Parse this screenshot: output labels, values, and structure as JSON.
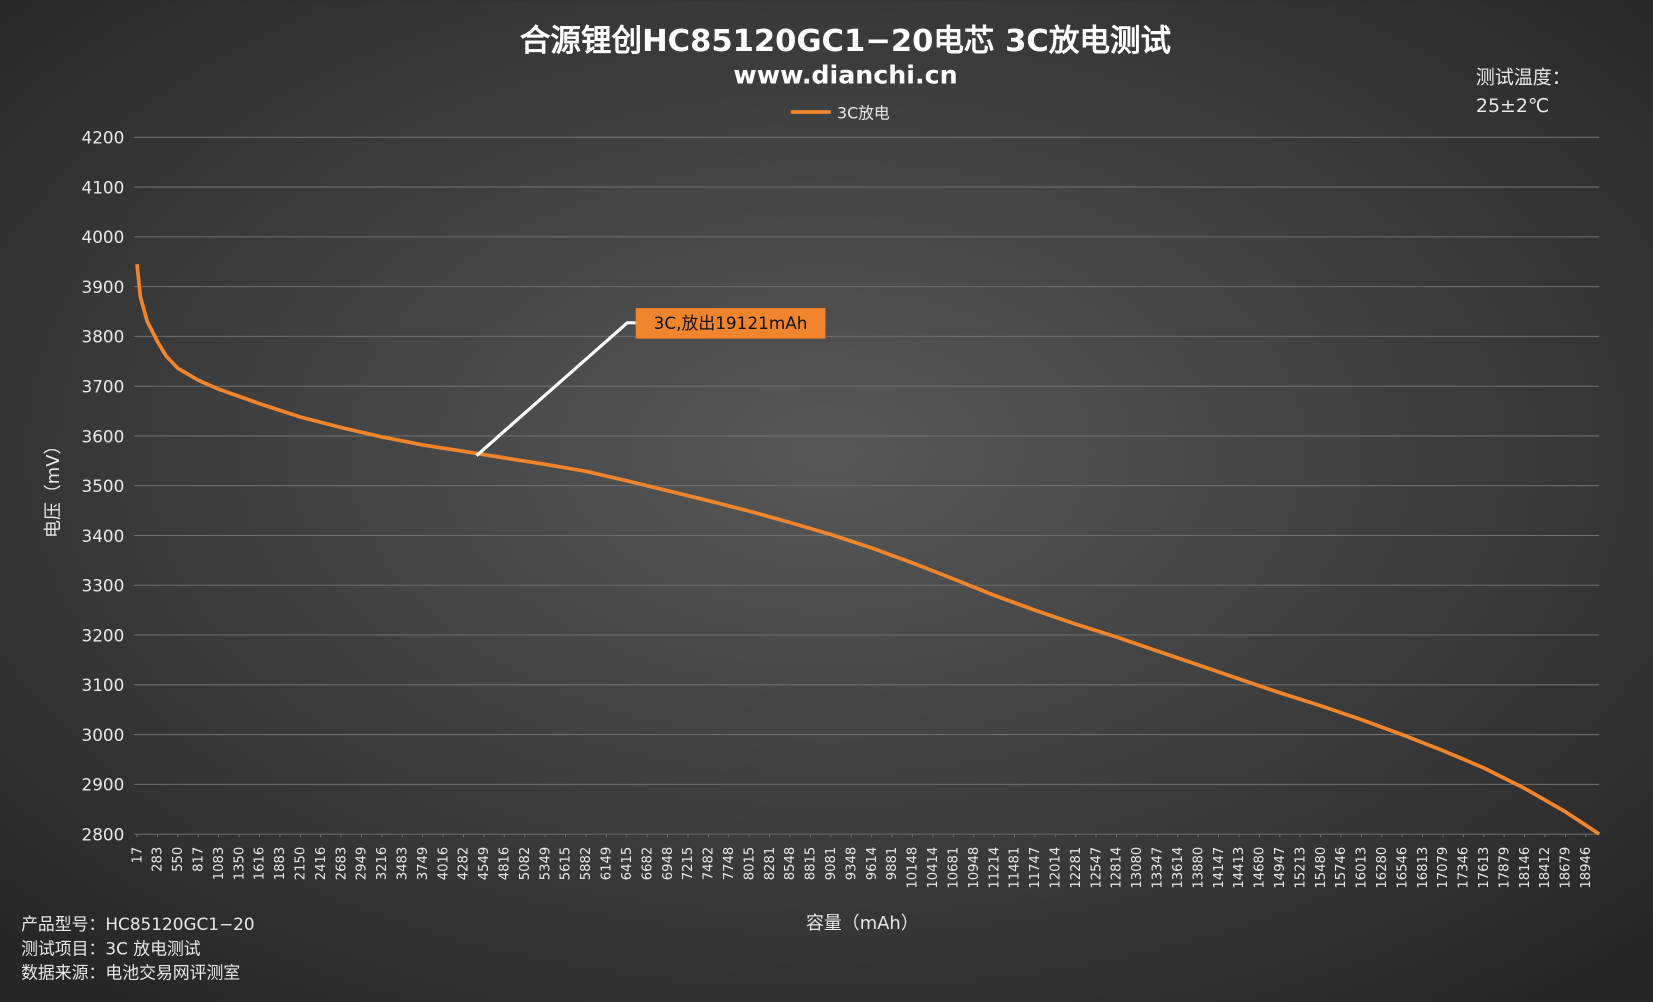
{
  "chart_data": {
    "type": "line",
    "title": "合源锂创HC85120GC1−20电芯 3C放电测试",
    "subtitle": "www.dianchi.cn",
    "x_label": "容量（mAh）",
    "y_label": "电压（mV）",
    "temperature_label": "测试温度：",
    "temperature_value": "25±2℃",
    "annotation": "3C,放出19121mAh",
    "notes": [
      "产品型号：HC85120GC1−20",
      "测试项目：3C 放电测试",
      "数据来源：电池交易网评测室"
    ],
    "grid": true,
    "legend": "top",
    "x": [
      17,
      60,
      150,
      283,
      400,
      550,
      817,
      1083,
      1616,
      2150,
      2683,
      3216,
      3749,
      4282,
      4816,
      5349,
      5882,
      6415,
      6948,
      7482,
      8015,
      8548,
      9081,
      9614,
      10148,
      10681,
      11214,
      11747,
      12281,
      12814,
      13347,
      13880,
      14413,
      14947,
      15480,
      16013,
      16546,
      17079,
      17613,
      18146,
      18679,
      18946,
      19121
    ],
    "series": [
      {
        "name": "3C放电",
        "color": "#f0852d",
        "values": [
          3945,
          3880,
          3830,
          3790,
          3760,
          3736,
          3712,
          3694,
          3665,
          3638,
          3617,
          3598,
          3582,
          3569,
          3556,
          3543,
          3529,
          3510,
          3490,
          3470,
          3449,
          3426,
          3402,
          3375,
          3345,
          3313,
          3280,
          3250,
          3222,
          3196,
          3168,
          3140,
          3112,
          3084,
          3058,
          3030,
          3000,
          2968,
          2933,
          2892,
          2845,
          2818,
          2800
        ]
      }
    ],
    "xlim": [
      17,
      19121
    ],
    "xticks": [
      17,
      283,
      550,
      817,
      1083,
      1350,
      1616,
      1883,
      2150,
      2416,
      2683,
      2949,
      3216,
      3483,
      3749,
      4016,
      4282,
      4549,
      4816,
      5082,
      5349,
      5615,
      5882,
      6149,
      6415,
      6682,
      6948,
      7215,
      7482,
      7748,
      8015,
      8281,
      8548,
      8815,
      9081,
      9348,
      9614,
      9881,
      10148,
      10414,
      10681,
      10948,
      11214,
      11481,
      11747,
      12014,
      12281,
      12547,
      12814,
      13080,
      13347,
      13614,
      13880,
      14147,
      14413,
      14680,
      14947,
      15213,
      15480,
      15746,
      16013,
      16280,
      16546,
      16813,
      17079,
      17346,
      17613,
      17879,
      18146,
      18412,
      18679,
      18946
    ],
    "ylim": [
      2800,
      4200
    ],
    "yticks": [
      2800,
      2900,
      3000,
      3100,
      3200,
      3300,
      3400,
      3500,
      3600,
      3700,
      3800,
      3900,
      4000,
      4100,
      4200
    ]
  }
}
